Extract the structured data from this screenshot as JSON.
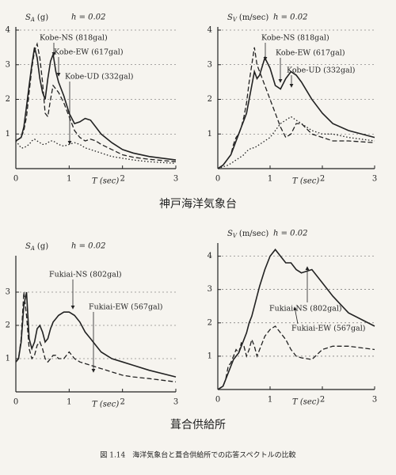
{
  "chart_data": [
    {
      "type": "line",
      "y_label_symbol": "S",
      "y_label_sub": "A",
      "y_label_unit": "(g)",
      "damping_label": "h = 0.02",
      "x_label": "T (sec)",
      "xlim": [
        0,
        3
      ],
      "ylim": [
        0,
        4
      ],
      "xticks": [
        0,
        1,
        2,
        3
      ],
      "yticks": [
        1,
        2,
        3,
        4
      ],
      "grid": true,
      "x": [
        0,
        0.05,
        0.1,
        0.15,
        0.2,
        0.25,
        0.3,
        0.35,
        0.4,
        0.45,
        0.5,
        0.55,
        0.6,
        0.65,
        0.7,
        0.75,
        0.8,
        0.9,
        1.0,
        1.1,
        1.2,
        1.3,
        1.4,
        1.5,
        1.6,
        1.8,
        2.0,
        2.2,
        2.5,
        3.0
      ],
      "series": [
        {
          "name": "Kobe-NS (818gal)",
          "color": "#222222",
          "style": "solid",
          "values": [
            0.8,
            0.85,
            0.9,
            1.2,
            1.8,
            2.4,
            3.0,
            3.5,
            3.2,
            2.6,
            2.2,
            2.0,
            2.6,
            3.1,
            3.3,
            2.8,
            2.5,
            2.1,
            1.6,
            1.3,
            1.35,
            1.45,
            1.4,
            1.2,
            1.0,
            0.75,
            0.55,
            0.45,
            0.35,
            0.25
          ]
        },
        {
          "name": "Kobe-EW (617gal)",
          "color": "#222222",
          "style": "dashed",
          "values": [
            0.8,
            0.85,
            0.9,
            1.1,
            1.5,
            2.2,
            2.9,
            3.4,
            3.6,
            3.2,
            2.5,
            1.6,
            1.5,
            2.0,
            2.4,
            2.3,
            2.2,
            1.9,
            1.5,
            1.1,
            0.9,
            0.8,
            0.85,
            0.8,
            0.7,
            0.55,
            0.4,
            0.33,
            0.27,
            0.2
          ]
        },
        {
          "name": "Kobe-UD (332gal)",
          "color": "#222222",
          "style": "dotted",
          "values": [
            0.8,
            0.7,
            0.6,
            0.6,
            0.65,
            0.7,
            0.8,
            0.85,
            0.8,
            0.75,
            0.7,
            0.7,
            0.75,
            0.8,
            0.8,
            0.75,
            0.7,
            0.65,
            0.7,
            0.75,
            0.7,
            0.6,
            0.55,
            0.5,
            0.45,
            0.35,
            0.3,
            0.25,
            0.2,
            0.15
          ]
        }
      ]
    },
    {
      "type": "line",
      "y_label_symbol": "S",
      "y_label_sub": "V",
      "y_label_unit": "(m/sec)",
      "damping_label": "h = 0.02",
      "x_label": "T (sec)",
      "xlim": [
        0,
        3
      ],
      "ylim": [
        0,
        4
      ],
      "xticks": [
        0,
        1,
        2,
        3
      ],
      "yticks": [
        1,
        2,
        3,
        4
      ],
      "grid": true,
      "x": [
        0,
        0.05,
        0.1,
        0.15,
        0.2,
        0.25,
        0.3,
        0.35,
        0.4,
        0.45,
        0.5,
        0.55,
        0.6,
        0.65,
        0.7,
        0.75,
        0.8,
        0.9,
        1.0,
        1.1,
        1.2,
        1.3,
        1.4,
        1.5,
        1.6,
        1.8,
        2.0,
        2.2,
        2.5,
        3.0
      ],
      "series": [
        {
          "name": "Kobe-NS (818gal)",
          "color": "#222222",
          "style": "solid",
          "values": [
            0,
            0.05,
            0.1,
            0.2,
            0.3,
            0.4,
            0.6,
            0.8,
            1.0,
            1.2,
            1.4,
            1.6,
            2.0,
            2.4,
            2.8,
            2.6,
            2.7,
            3.2,
            2.9,
            2.4,
            2.3,
            2.6,
            2.8,
            2.7,
            2.5,
            2.0,
            1.6,
            1.3,
            1.1,
            0.9
          ]
        },
        {
          "name": "Kobe-EW (617gal)",
          "color": "#222222",
          "style": "dashed",
          "values": [
            0,
            0.05,
            0.1,
            0.2,
            0.3,
            0.4,
            0.7,
            0.9,
            1.0,
            1.2,
            1.5,
            1.9,
            2.5,
            3.0,
            3.5,
            3.0,
            2.8,
            2.4,
            2.0,
            1.6,
            1.2,
            0.9,
            1.0,
            1.3,
            1.3,
            1.0,
            0.9,
            0.8,
            0.8,
            0.75
          ]
        },
        {
          "name": "Kobe-UD (332gal)",
          "color": "#222222",
          "style": "dotted",
          "values": [
            0,
            0.03,
            0.05,
            0.08,
            0.1,
            0.15,
            0.2,
            0.25,
            0.3,
            0.35,
            0.4,
            0.5,
            0.55,
            0.6,
            0.6,
            0.65,
            0.7,
            0.8,
            0.9,
            1.1,
            1.3,
            1.4,
            1.5,
            1.4,
            1.3,
            1.1,
            1.0,
            1.0,
            0.9,
            0.8
          ]
        }
      ]
    },
    {
      "type": "line",
      "y_label_symbol": "S",
      "y_label_sub": "A",
      "y_label_unit": "(g)",
      "damping_label": "h = 0.02",
      "x_label": "T (sec)",
      "xlim": [
        0,
        3
      ],
      "ylim": [
        0,
        4
      ],
      "xticks": [
        0,
        1,
        2,
        3
      ],
      "yticks": [
        1,
        2,
        3
      ],
      "grid": true,
      "x": [
        0,
        0.05,
        0.1,
        0.15,
        0.2,
        0.25,
        0.3,
        0.35,
        0.4,
        0.45,
        0.5,
        0.55,
        0.6,
        0.65,
        0.7,
        0.75,
        0.8,
        0.9,
        1.0,
        1.1,
        1.2,
        1.3,
        1.4,
        1.5,
        1.6,
        1.8,
        2.0,
        2.2,
        2.5,
        3.0
      ],
      "series": [
        {
          "name": "Fukiai-NS (802gal)",
          "color": "#222222",
          "style": "solid",
          "values": [
            0.9,
            1.0,
            1.5,
            2.6,
            3.0,
            1.6,
            1.3,
            1.5,
            1.9,
            2.0,
            1.8,
            1.5,
            1.6,
            1.9,
            2.1,
            2.2,
            2.3,
            2.4,
            2.4,
            2.3,
            2.1,
            1.8,
            1.6,
            1.4,
            1.2,
            1.0,
            0.9,
            0.8,
            0.65,
            0.45
          ]
        },
        {
          "name": "Fukiai-EW (567gal)",
          "color": "#222222",
          "style": "dashed",
          "values": [
            0.9,
            1.0,
            1.6,
            3.0,
            2.3,
            1.3,
            1.0,
            1.1,
            1.4,
            1.5,
            1.3,
            1.0,
            0.9,
            1.0,
            1.1,
            1.1,
            1.0,
            1.0,
            1.2,
            1.0,
            0.9,
            0.85,
            0.8,
            0.75,
            0.7,
            0.6,
            0.5,
            0.45,
            0.4,
            0.3
          ]
        }
      ]
    },
    {
      "type": "line",
      "y_label_symbol": "S",
      "y_label_sub": "V",
      "y_label_unit": "(m/sec)",
      "damping_label": "h = 0.02",
      "x_label": "T (sec)",
      "xlim": [
        0,
        3
      ],
      "ylim": [
        0,
        4.3
      ],
      "xticks": [
        0,
        1,
        2,
        3
      ],
      "yticks": [
        1,
        2,
        3,
        4
      ],
      "grid": true,
      "x": [
        0,
        0.05,
        0.1,
        0.15,
        0.2,
        0.25,
        0.3,
        0.35,
        0.4,
        0.45,
        0.5,
        0.55,
        0.6,
        0.65,
        0.7,
        0.75,
        0.8,
        0.9,
        1.0,
        1.1,
        1.2,
        1.3,
        1.4,
        1.5,
        1.6,
        1.8,
        2.0,
        2.2,
        2.5,
        3.0
      ],
      "series": [
        {
          "name": "Fukiai-NS (802gal)",
          "color": "#222222",
          "style": "solid",
          "values": [
            0,
            0.05,
            0.1,
            0.3,
            0.5,
            0.7,
            0.9,
            1.0,
            1.1,
            1.3,
            1.5,
            1.7,
            2.0,
            2.2,
            2.5,
            2.8,
            3.1,
            3.6,
            4.0,
            4.2,
            4.0,
            3.8,
            3.8,
            3.6,
            3.5,
            3.6,
            3.2,
            2.8,
            2.3,
            1.9
          ]
        },
        {
          "name": "Fukiai-EW (567gal)",
          "color": "#222222",
          "style": "dashed",
          "values": [
            0,
            0.05,
            0.1,
            0.3,
            0.7,
            0.8,
            1.0,
            1.2,
            1.1,
            1.4,
            1.3,
            1.0,
            1.2,
            1.5,
            1.3,
            1.0,
            1.2,
            1.6,
            1.8,
            1.9,
            1.7,
            1.5,
            1.2,
            1.0,
            0.95,
            0.9,
            1.2,
            1.3,
            1.3,
            1.2
          ]
        }
      ]
    }
  ],
  "captions": {
    "top_station": "神戸海洋気象台",
    "bottom_station": "葺合供給所",
    "figure": "図 1.14　海洋気象台と葺合供給所での応答スペクトルの比較"
  }
}
